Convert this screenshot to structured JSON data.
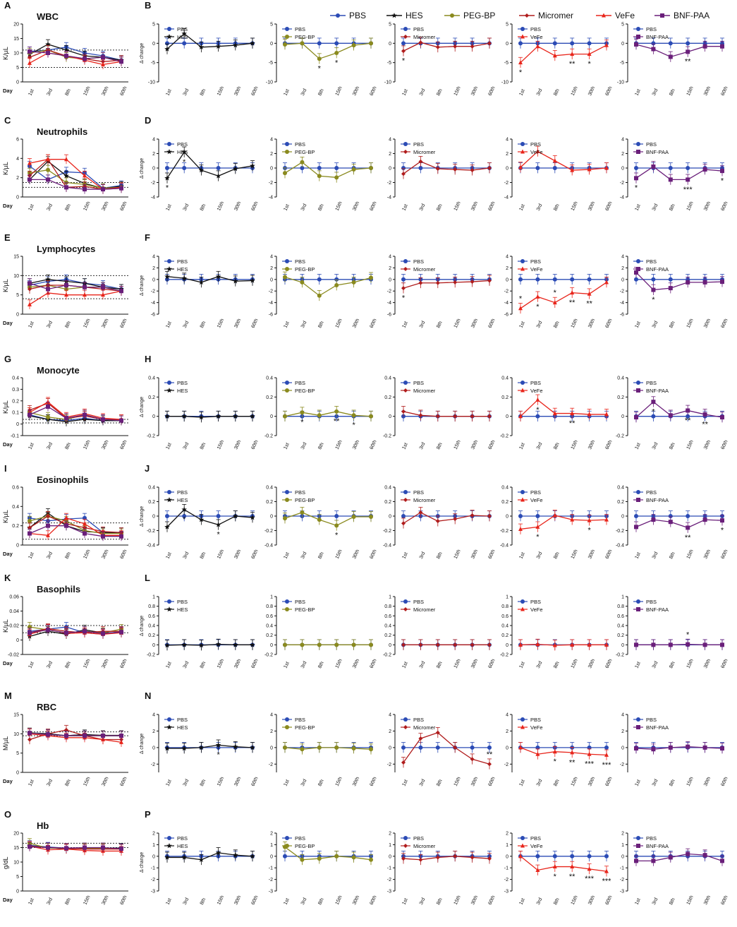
{
  "legend": {
    "items": [
      {
        "label": "PBS",
        "color": "#2b4bb5",
        "marker": "circle"
      },
      {
        "label": "HES",
        "color": "#111111",
        "marker": "star"
      },
      {
        "label": "PEG-BP",
        "color": "#8a8a1e",
        "marker": "circle"
      },
      {
        "label": "Micromer",
        "color": "#b01c1c",
        "marker": "diamond"
      },
      {
        "label": "VeFe",
        "color": "#e8251b",
        "marker": "triangle"
      },
      {
        "label": "BNF-PAA",
        "color": "#6a1f7a",
        "marker": "square"
      }
    ]
  },
  "x_labels": [
    "1st",
    "3rd",
    "8th",
    "15th",
    "30th",
    "60th"
  ],
  "day_label": "Day",
  "delta_label": "Δ change",
  "treatments": [
    "HES",
    "PEG-BP",
    "Micromer",
    "VeFe",
    "BNF-PAA"
  ],
  "chart_data": [
    {
      "row": "WBC",
      "left_letter": "A",
      "right_letter": "B",
      "title": "WBC",
      "ylabel": "K/µL",
      "type": "line",
      "ylim_left": [
        0,
        20
      ],
      "ticks_left": [
        0,
        5,
        10,
        15,
        20
      ],
      "ref_lines": [
        5,
        11
      ],
      "ylim_delta": [
        -10,
        5
      ],
      "ticks_delta": [
        -10,
        -5,
        0,
        5
      ],
      "absolute": {
        "PBS": [
          10.5,
          11.0,
          12.0,
          10.0,
          9.0,
          7.5
        ],
        "HES": [
          9.5,
          13.0,
          11.0,
          9.0,
          8.5,
          7.5
        ],
        "PEG-BP": [
          10.0,
          11.0,
          8.5,
          8.0,
          8.5,
          7.0
        ],
        "Micromer": [
          8.5,
          11.0,
          9.0,
          8.0,
          7.0,
          7.5
        ],
        "VeFe": [
          6.5,
          10.0,
          9.0,
          7.5,
          6.0,
          7.0
        ],
        "BNF-PAA": [
          10.5,
          10.0,
          9.0,
          8.0,
          8.5,
          7.0
        ]
      },
      "delta": {
        "HES": [
          -1.5,
          2.5,
          -1.0,
          -0.8,
          -0.5,
          0.0
        ],
        "PEG-BP": [
          -0.3,
          0.0,
          -4.0,
          -2.5,
          -0.5,
          0.0
        ],
        "Micromer": [
          -2.0,
          0.2,
          -1.0,
          -0.8,
          -0.8,
          0.0
        ],
        "VeFe": [
          -5.0,
          -0.8,
          -3.2,
          -2.8,
          -2.8,
          -0.5
        ],
        "BNF-PAA": [
          -0.3,
          -1.5,
          -3.5,
          -2.2,
          -0.8,
          -0.8
        ]
      },
      "sig": {
        "PEG-BP": [
          [
            "8th",
            "*"
          ],
          [
            "15th",
            "*"
          ]
        ],
        "Micromer": [
          [
            "1st",
            "*"
          ]
        ],
        "VeFe": [
          [
            "1st",
            "*"
          ],
          [
            "15th",
            "**"
          ],
          [
            "30th",
            "*"
          ]
        ],
        "BNF-PAA": [
          [
            "15th",
            "**"
          ]
        ]
      }
    },
    {
      "row": "Neutrophils",
      "left_letter": "C",
      "right_letter": "D",
      "title": "Neutrophils",
      "ylabel": "K/µL",
      "type": "line",
      "ylim_left": [
        0,
        6
      ],
      "ticks_left": [
        0,
        2,
        4,
        6
      ],
      "ref_lines": [
        1,
        1.5
      ],
      "ylim_delta": [
        -4,
        4
      ],
      "ticks_delta": [
        -4,
        -2,
        0,
        2,
        4
      ],
      "absolute": {
        "PBS": [
          3.2,
          1.8,
          2.6,
          2.5,
          0.9,
          1.2
        ],
        "HES": [
          1.8,
          3.7,
          2.2,
          1.4,
          0.9,
          1.1
        ],
        "PEG-BP": [
          2.5,
          2.8,
          1.5,
          1.3,
          0.9,
          1.0
        ],
        "Micromer": [
          2.2,
          3.9,
          1.0,
          1.1,
          0.8,
          0.9
        ],
        "VeFe": [
          3.5,
          3.9,
          3.9,
          2.2,
          0.8,
          1.0
        ],
        "BNF-PAA": [
          1.8,
          1.8,
          1.0,
          0.8,
          0.8,
          0.9
        ]
      },
      "delta": {
        "HES": [
          -1.4,
          2.2,
          -0.3,
          -1.1,
          -0.1,
          0.3
        ],
        "PEG-BP": [
          -0.7,
          0.8,
          -1.1,
          -1.3,
          -0.2,
          0.0
        ],
        "Micromer": [
          -0.8,
          0.9,
          -0.1,
          -0.2,
          -0.3,
          0.0
        ],
        "VeFe": [
          0.1,
          2.3,
          1.0,
          -0.3,
          -0.2,
          0.0
        ],
        "BNF-PAA": [
          -1.4,
          0.2,
          -1.6,
          -1.6,
          -0.2,
          -0.4
        ]
      },
      "sig": {
        "HES": [
          [
            "1st",
            "*"
          ],
          [
            "3rd",
            "*"
          ]
        ],
        "BNF-PAA": [
          [
            "1st",
            "*"
          ],
          [
            "15th",
            "***"
          ],
          [
            "60th",
            "*"
          ]
        ]
      }
    },
    {
      "row": "Lymphocytes",
      "left_letter": "E",
      "right_letter": "F",
      "title": "Lymphocytes",
      "ylabel": "K/µL",
      "type": "line",
      "ylim_left": [
        0,
        15
      ],
      "ticks_left": [
        0,
        5,
        10,
        15
      ],
      "ref_lines": [
        4,
        10
      ],
      "ylim_delta": [
        -6,
        4
      ],
      "ticks_delta": [
        -6,
        -4,
        -2,
        0,
        2,
        4
      ],
      "absolute": {
        "PBS": [
          7.5,
          8.5,
          9.0,
          8.0,
          7.5,
          6.5
        ],
        "HES": [
          8.0,
          9.0,
          8.5,
          8.0,
          7.0,
          6.5
        ],
        "PEG-BP": [
          7.0,
          7.5,
          6.5,
          7.0,
          7.0,
          6.0
        ],
        "Micromer": [
          6.5,
          7.5,
          7.5,
          7.0,
          6.5,
          6.0
        ],
        "VeFe": [
          2.5,
          5.5,
          5.0,
          5.0,
          5.0,
          6.0
        ],
        "BNF-PAA": [
          8.0,
          6.5,
          7.5,
          7.0,
          7.0,
          6.0
        ]
      },
      "delta": {
        "HES": [
          0.5,
          0.2,
          -0.5,
          0.5,
          -0.3,
          -0.2
        ],
        "PEG-BP": [
          0.4,
          -0.5,
          -2.8,
          -1.0,
          -0.5,
          0.3
        ],
        "Micromer": [
          -1.5,
          -0.6,
          -0.6,
          -0.5,
          -0.4,
          -0.2
        ],
        "VeFe": [
          -5.0,
          -3.0,
          -4.0,
          -2.3,
          -2.5,
          -0.5
        ],
        "BNF-PAA": [
          1.2,
          -1.8,
          -1.5,
          -0.5,
          -0.5,
          -0.4
        ]
      },
      "sig": {
        "Micromer": [
          [
            "1st",
            "*"
          ]
        ],
        "VeFe": [
          [
            "1st",
            "*"
          ],
          [
            "3rd",
            "*"
          ],
          [
            "8th",
            "*"
          ],
          [
            "15th",
            "**"
          ],
          [
            "30th",
            "**"
          ]
        ],
        "BNF-PAA": [
          [
            "3rd",
            "*"
          ]
        ]
      }
    },
    {
      "row": "Monocyte",
      "left_letter": "G",
      "right_letter": "H",
      "title": "Monocyte",
      "ylabel": "K/µL",
      "type": "line",
      "ylim_left": [
        -0.1,
        0.4
      ],
      "ticks_left": [
        -0.1,
        0.0,
        0.1,
        0.2,
        0.3,
        0.4
      ],
      "ref_lines": [
        0.01,
        0.04
      ],
      "ylim_delta": [
        -0.2,
        0.4
      ],
      "ticks_delta": [
        -0.2,
        0.0,
        0.2,
        0.4
      ],
      "absolute": {
        "PBS": [
          0.08,
          0.04,
          0.03,
          0.05,
          0.03,
          0.03
        ],
        "HES": [
          0.07,
          0.04,
          0.02,
          0.04,
          0.03,
          0.03
        ],
        "PEG-BP": [
          0.1,
          0.06,
          0.04,
          0.08,
          0.04,
          0.03
        ],
        "Micromer": [
          0.12,
          0.18,
          0.05,
          0.07,
          0.04,
          0.04
        ],
        "VeFe": [
          0.1,
          0.19,
          0.06,
          0.09,
          0.05,
          0.04
        ],
        "BNF-PAA": [
          0.08,
          0.15,
          0.05,
          0.08,
          0.04,
          0.03
        ]
      },
      "delta": {
        "HES": [
          0.0,
          0.0,
          -0.01,
          0.0,
          0.0,
          0.0
        ],
        "PEG-BP": [
          0.0,
          0.04,
          0.01,
          0.05,
          0.01,
          0.0
        ],
        "Micromer": [
          0.05,
          0.01,
          0.0,
          0.0,
          0.0,
          0.0
        ],
        "VeFe": [
          0.0,
          0.17,
          0.03,
          0.03,
          0.02,
          0.02
        ],
        "BNF-PAA": [
          -0.01,
          0.15,
          0.01,
          0.06,
          0.02,
          -0.01
        ]
      },
      "sig": {
        "PEG-BP": [
          [
            "3rd",
            "*"
          ],
          [
            "15th",
            "**"
          ],
          [
            "30th",
            "*"
          ]
        ],
        "VeFe": [
          [
            "3rd",
            "*"
          ],
          [
            "15th",
            "**"
          ]
        ],
        "BNF-PAA": [
          [
            "3rd",
            "*"
          ],
          [
            "15th",
            "**"
          ],
          [
            "30th",
            "**"
          ]
        ]
      }
    },
    {
      "row": "Eosinophils",
      "left_letter": "I",
      "right_letter": "J",
      "title": "Eosinophils",
      "ylabel": "K/µL",
      "type": "line",
      "ylim_left": [
        0,
        0.6
      ],
      "ticks_left": [
        0.0,
        0.2,
        0.4,
        0.6
      ],
      "ref_lines": [
        0.06,
        0.23
      ],
      "ylim_delta": [
        -0.4,
        0.4
      ],
      "ticks_delta": [
        -0.4,
        -0.2,
        0.0,
        0.2,
        0.4
      ],
      "absolute": {
        "PBS": [
          0.28,
          0.25,
          0.27,
          0.28,
          0.13,
          0.13
        ],
        "HES": [
          0.18,
          0.33,
          0.2,
          0.14,
          0.13,
          0.13
        ],
        "PEG-BP": [
          0.25,
          0.3,
          0.25,
          0.15,
          0.12,
          0.12
        ],
        "Micromer": [
          0.18,
          0.3,
          0.22,
          0.18,
          0.14,
          0.13
        ],
        "VeFe": [
          0.12,
          0.1,
          0.28,
          0.22,
          0.1,
          0.1
        ],
        "BNF-PAA": [
          0.12,
          0.2,
          0.2,
          0.12,
          0.09,
          0.09
        ]
      },
      "delta": {
        "HES": [
          -0.15,
          0.09,
          -0.05,
          -0.12,
          0.0,
          -0.02
        ],
        "PEG-BP": [
          -0.03,
          0.05,
          -0.05,
          -0.13,
          -0.01,
          -0.01
        ],
        "Micromer": [
          -0.1,
          0.05,
          -0.07,
          -0.04,
          0.01,
          0.0
        ],
        "VeFe": [
          -0.18,
          -0.15,
          0.01,
          -0.05,
          -0.06,
          -0.05
        ],
        "BNF-PAA": [
          -0.15,
          -0.05,
          -0.08,
          -0.16,
          -0.05,
          -0.06
        ]
      },
      "sig": {
        "HES": [
          [
            "3rd",
            "*"
          ],
          [
            "15th",
            "*"
          ]
        ],
        "PEG-BP": [
          [
            "15th",
            "*"
          ]
        ],
        "VeFe": [
          [
            "3rd",
            "*"
          ],
          [
            "30th",
            "*"
          ]
        ],
        "BNF-PAA": [
          [
            "15th",
            "**"
          ],
          [
            "60th",
            "*"
          ]
        ]
      }
    },
    {
      "row": "Basophils",
      "left_letter": "K",
      "right_letter": "L",
      "title": "Basophils",
      "ylabel": "K/µL",
      "type": "line",
      "ylim_left": [
        -0.02,
        0.06
      ],
      "ticks_left": [
        -0.02,
        0.0,
        0.02,
        0.04,
        0.06
      ],
      "ref_lines": [
        0.01,
        0.02
      ],
      "ylim_delta": [
        -0.2,
        1.0
      ],
      "ticks_delta": [
        -0.2,
        0.0,
        0.2,
        0.4,
        0.6,
        0.8,
        1.0
      ],
      "absolute": {
        "PBS": [
          0.012,
          0.015,
          0.018,
          0.01,
          0.008,
          0.012
        ],
        "HES": [
          0.005,
          0.012,
          0.008,
          0.014,
          0.01,
          0.01
        ],
        "PEG-BP": [
          0.018,
          0.014,
          0.01,
          0.012,
          0.01,
          0.015
        ],
        "Micromer": [
          0.01,
          0.016,
          0.012,
          0.01,
          0.012,
          0.012
        ],
        "VeFe": [
          0.008,
          0.015,
          0.009,
          0.01,
          0.008,
          0.01
        ],
        "BNF-PAA": [
          0.01,
          0.014,
          0.01,
          0.012,
          0.009,
          0.011
        ]
      },
      "delta": {
        "HES": [
          -0.01,
          0.0,
          -0.01,
          0.01,
          0.0,
          0.0
        ],
        "PEG-BP": [
          0.0,
          0.0,
          0.0,
          0.0,
          0.0,
          0.0
        ],
        "Micromer": [
          0.0,
          0.0,
          0.0,
          0.0,
          0.0,
          0.0
        ],
        "VeFe": [
          0.0,
          0.01,
          -0.01,
          0.0,
          0.0,
          0.0
        ],
        "BNF-PAA": [
          0.0,
          0.0,
          0.0,
          0.01,
          0.0,
          0.0
        ]
      },
      "sig": {
        "BNF-PAA": [
          [
            "15th",
            "*"
          ]
        ]
      }
    },
    {
      "row": "RBC",
      "left_letter": "M",
      "right_letter": "N",
      "title": "RBC",
      "ylabel": "M/µL",
      "type": "line",
      "ylim_left": [
        0,
        15
      ],
      "ticks_left": [
        0,
        5,
        10,
        15
      ],
      "ref_lines": [
        9.5,
        10.5
      ],
      "ylim_delta": [
        -3,
        4
      ],
      "ticks_delta": [
        -2,
        0,
        2,
        4
      ],
      "absolute": {
        "PBS": [
          10.3,
          10.0,
          9.5,
          9.8,
          9.5,
          9.5
        ],
        "HES": [
          10.2,
          10.0,
          9.5,
          9.8,
          9.6,
          9.6
        ],
        "PEG-BP": [
          10.3,
          9.8,
          9.5,
          9.5,
          9.5,
          9.5
        ],
        "Micromer": [
          8.5,
          10.0,
          11.0,
          9.5,
          8.5,
          8.5
        ],
        "VeFe": [
          10.0,
          9.5,
          9.0,
          9.0,
          8.5,
          7.8
        ],
        "BNF-PAA": [
          10.2,
          9.8,
          9.5,
          9.5,
          9.5,
          9.5
        ]
      },
      "delta": {
        "HES": [
          -0.1,
          -0.1,
          0.0,
          0.3,
          0.1,
          0.0
        ],
        "PEG-BP": [
          0.0,
          -0.2,
          0.0,
          0.0,
          -0.1,
          -0.2
        ],
        "Micromer": [
          -1.8,
          1.1,
          1.8,
          0.0,
          -1.4,
          -2.0
        ],
        "VeFe": [
          0.0,
          -0.8,
          -0.5,
          -0.6,
          -0.8,
          -0.9
        ],
        "BNF-PAA": [
          -0.1,
          -0.2,
          0.0,
          0.1,
          0.0,
          -0.1
        ]
      },
      "sig": {
        "HES": [
          [
            "15th",
            "*"
          ]
        ],
        "Micromer": [
          [
            "60th",
            "**"
          ]
        ],
        "VeFe": [
          [
            "8th",
            "*"
          ],
          [
            "15th",
            "**"
          ],
          [
            "30th",
            "***"
          ],
          [
            "60th",
            "***"
          ]
        ]
      }
    },
    {
      "row": "Hb",
      "left_letter": "O",
      "right_letter": "P",
      "title": "Hb",
      "ylabel": "g/dL",
      "type": "line",
      "ylim_left": [
        0,
        20
      ],
      "ticks_left": [
        0,
        5,
        10,
        15,
        20
      ],
      "ref_lines": [
        15,
        16.5
      ],
      "ylim_delta": [
        -3,
        2
      ],
      "ticks_delta": [
        -3,
        -2,
        -1,
        0,
        1,
        2
      ],
      "absolute": {
        "PBS": [
          15.8,
          15.2,
          14.8,
          14.8,
          14.8,
          14.8
        ],
        "HES": [
          15.5,
          15.0,
          14.5,
          14.8,
          14.8,
          14.8
        ],
        "PEG-BP": [
          16.5,
          14.8,
          14.8,
          14.8,
          14.8,
          14.5
        ],
        "Micromer": [
          15.5,
          15.0,
          14.8,
          14.5,
          14.5,
          14.5
        ],
        "VeFe": [
          15.5,
          14.2,
          14.5,
          14.0,
          13.8,
          13.8
        ],
        "BNF-PAA": [
          15.3,
          15.0,
          14.8,
          15.0,
          15.0,
          14.6
        ]
      },
      "delta": {
        "HES": [
          -0.1,
          -0.1,
          -0.3,
          0.3,
          0.1,
          0.0
        ],
        "PEG-BP": [
          0.8,
          -0.3,
          -0.2,
          0.0,
          -0.1,
          -0.3
        ],
        "Micromer": [
          -0.2,
          -0.3,
          -0.1,
          0.0,
          -0.1,
          -0.2
        ],
        "VeFe": [
          0.0,
          -1.2,
          -0.9,
          -0.9,
          -1.1,
          -1.3
        ],
        "BNF-PAA": [
          -0.4,
          -0.4,
          -0.1,
          0.2,
          0.1,
          -0.4
        ]
      },
      "sig": {
        "VeFe": [
          [
            "8th",
            "*"
          ],
          [
            "15th",
            "**"
          ],
          [
            "30th",
            "***"
          ],
          [
            "60th",
            "***"
          ]
        ]
      }
    }
  ]
}
